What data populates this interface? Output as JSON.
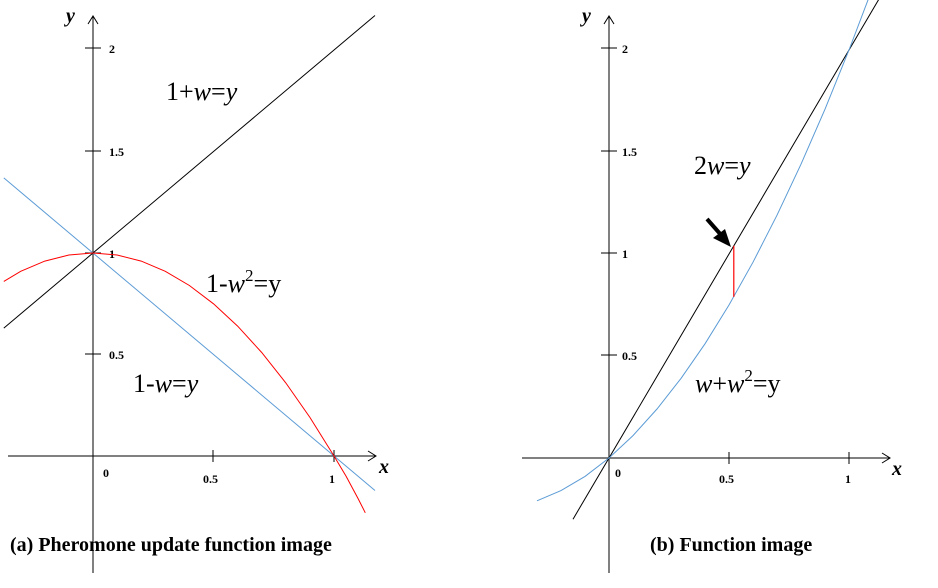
{
  "chart_data": [
    {
      "type": "line",
      "caption": "(a) Pheromone update function image",
      "xlabel": "x",
      "ylabel": "y",
      "xlim": [
        -0.37,
        1.17
      ],
      "ylim": [
        -0.55,
        2.2
      ],
      "x_ticks": [
        "0",
        "0.5",
        "1"
      ],
      "y_ticks": [
        "0.5",
        "1",
        "1.5",
        "2"
      ],
      "grid": false,
      "series": [
        {
          "name": "1+w=y",
          "color": "#000000",
          "x": [
            -0.37,
            1.17
          ],
          "y": [
            0.63,
            2.17
          ]
        },
        {
          "name": "1-w=y",
          "color": "#5b9bd5",
          "x": [
            -0.37,
            1.17
          ],
          "y": [
            1.37,
            -0.17
          ]
        },
        {
          "name": "1-w^2=y",
          "color": "#ff0000",
          "x": [
            -0.37,
            -0.3,
            -0.2,
            -0.1,
            0,
            0.1,
            0.2,
            0.3,
            0.4,
            0.5,
            0.6,
            0.7,
            0.8,
            0.9,
            1.0,
            1.05,
            1.1,
            1.13
          ],
          "y": [
            0.86,
            0.91,
            0.96,
            0.99,
            1.0,
            0.99,
            0.96,
            0.91,
            0.84,
            0.75,
            0.64,
            0.51,
            0.36,
            0.19,
            0.0,
            -0.1,
            -0.21,
            -0.28
          ]
        }
      ],
      "labels": [
        {
          "pre": "1+",
          "var": "w",
          "sup": "",
          "post": "=",
          "tail": "y",
          "tail_italic": true
        },
        {
          "pre": "1-",
          "var": "w",
          "sup": "2",
          "post": "=",
          "tail": "y",
          "tail_italic": false
        },
        {
          "pre": "1-",
          "var": "w",
          "sup": "",
          "post": "=",
          "tail": "y",
          "tail_italic": true
        }
      ]
    },
    {
      "type": "line",
      "caption": "(b) Function image",
      "xlabel": "x",
      "ylabel": "y",
      "xlim": [
        -0.37,
        1.17
      ],
      "ylim": [
        -0.55,
        2.2
      ],
      "x_ticks": [
        "0",
        "0.5",
        "1"
      ],
      "y_ticks": [
        "0.5",
        "1",
        "1.5",
        "2"
      ],
      "grid": false,
      "series": [
        {
          "name": "2w=y",
          "color": "#000000",
          "x": [
            -0.15,
            1.14
          ],
          "y": [
            -0.3,
            2.28
          ]
        },
        {
          "name": "w+w^2=y",
          "color": "#5b9bd5",
          "x": [
            -0.3,
            -0.2,
            -0.1,
            0,
            0.1,
            0.2,
            0.3,
            0.4,
            0.5,
            0.6,
            0.7,
            0.8,
            0.9,
            1.0,
            1.1,
            1.13
          ],
          "y": [
            -0.21,
            -0.16,
            -0.09,
            0.0,
            0.11,
            0.24,
            0.39,
            0.56,
            0.75,
            0.96,
            1.19,
            1.44,
            1.71,
            2.0,
            2.31,
            2.41
          ]
        }
      ],
      "highlight": {
        "x": 0.52,
        "y_from": 0.79,
        "y_to": 1.04,
        "color": "#ff0000"
      },
      "labels": [
        {
          "pre": "2",
          "var": "w",
          "sup": "",
          "post": "=",
          "tail": "y",
          "tail_italic": true
        },
        {
          "pre": "",
          "var": "w",
          "sup": "2",
          "post": "=",
          "tail": "y",
          "tail_italic": false,
          "mid": "+",
          "var2": "w"
        }
      ]
    }
  ]
}
